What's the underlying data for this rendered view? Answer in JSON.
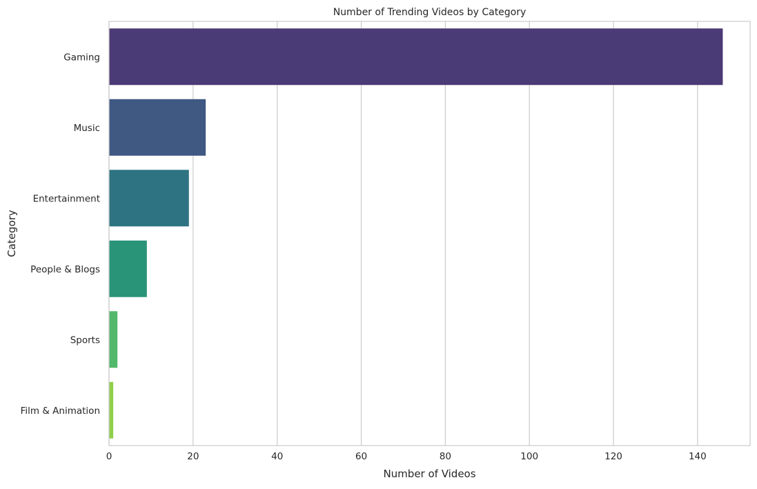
{
  "chart_data": {
    "type": "bar",
    "orientation": "horizontal",
    "title": "Number of Trending Videos by Category",
    "xlabel": "Number of Videos",
    "ylabel": "Category",
    "categories": [
      "Gaming",
      "Music",
      "Entertainment",
      "People & Blogs",
      "Sports",
      "Film & Animation"
    ],
    "values": [
      146,
      23,
      19,
      9,
      2,
      1
    ],
    "colors": [
      "#4a3a75",
      "#3f5983",
      "#2e7381",
      "#2a9478",
      "#52b86b",
      "#8fd04a"
    ],
    "xlim": [
      0,
      152.5
    ],
    "xticks": [
      0,
      20,
      40,
      60,
      80,
      100,
      120,
      140
    ],
    "xtick_labels": [
      "0",
      "20",
      "40",
      "60",
      "80",
      "100",
      "120",
      "140"
    ],
    "grid": true,
    "grid_color": "#cccccc",
    "background": "#ffffff"
  }
}
